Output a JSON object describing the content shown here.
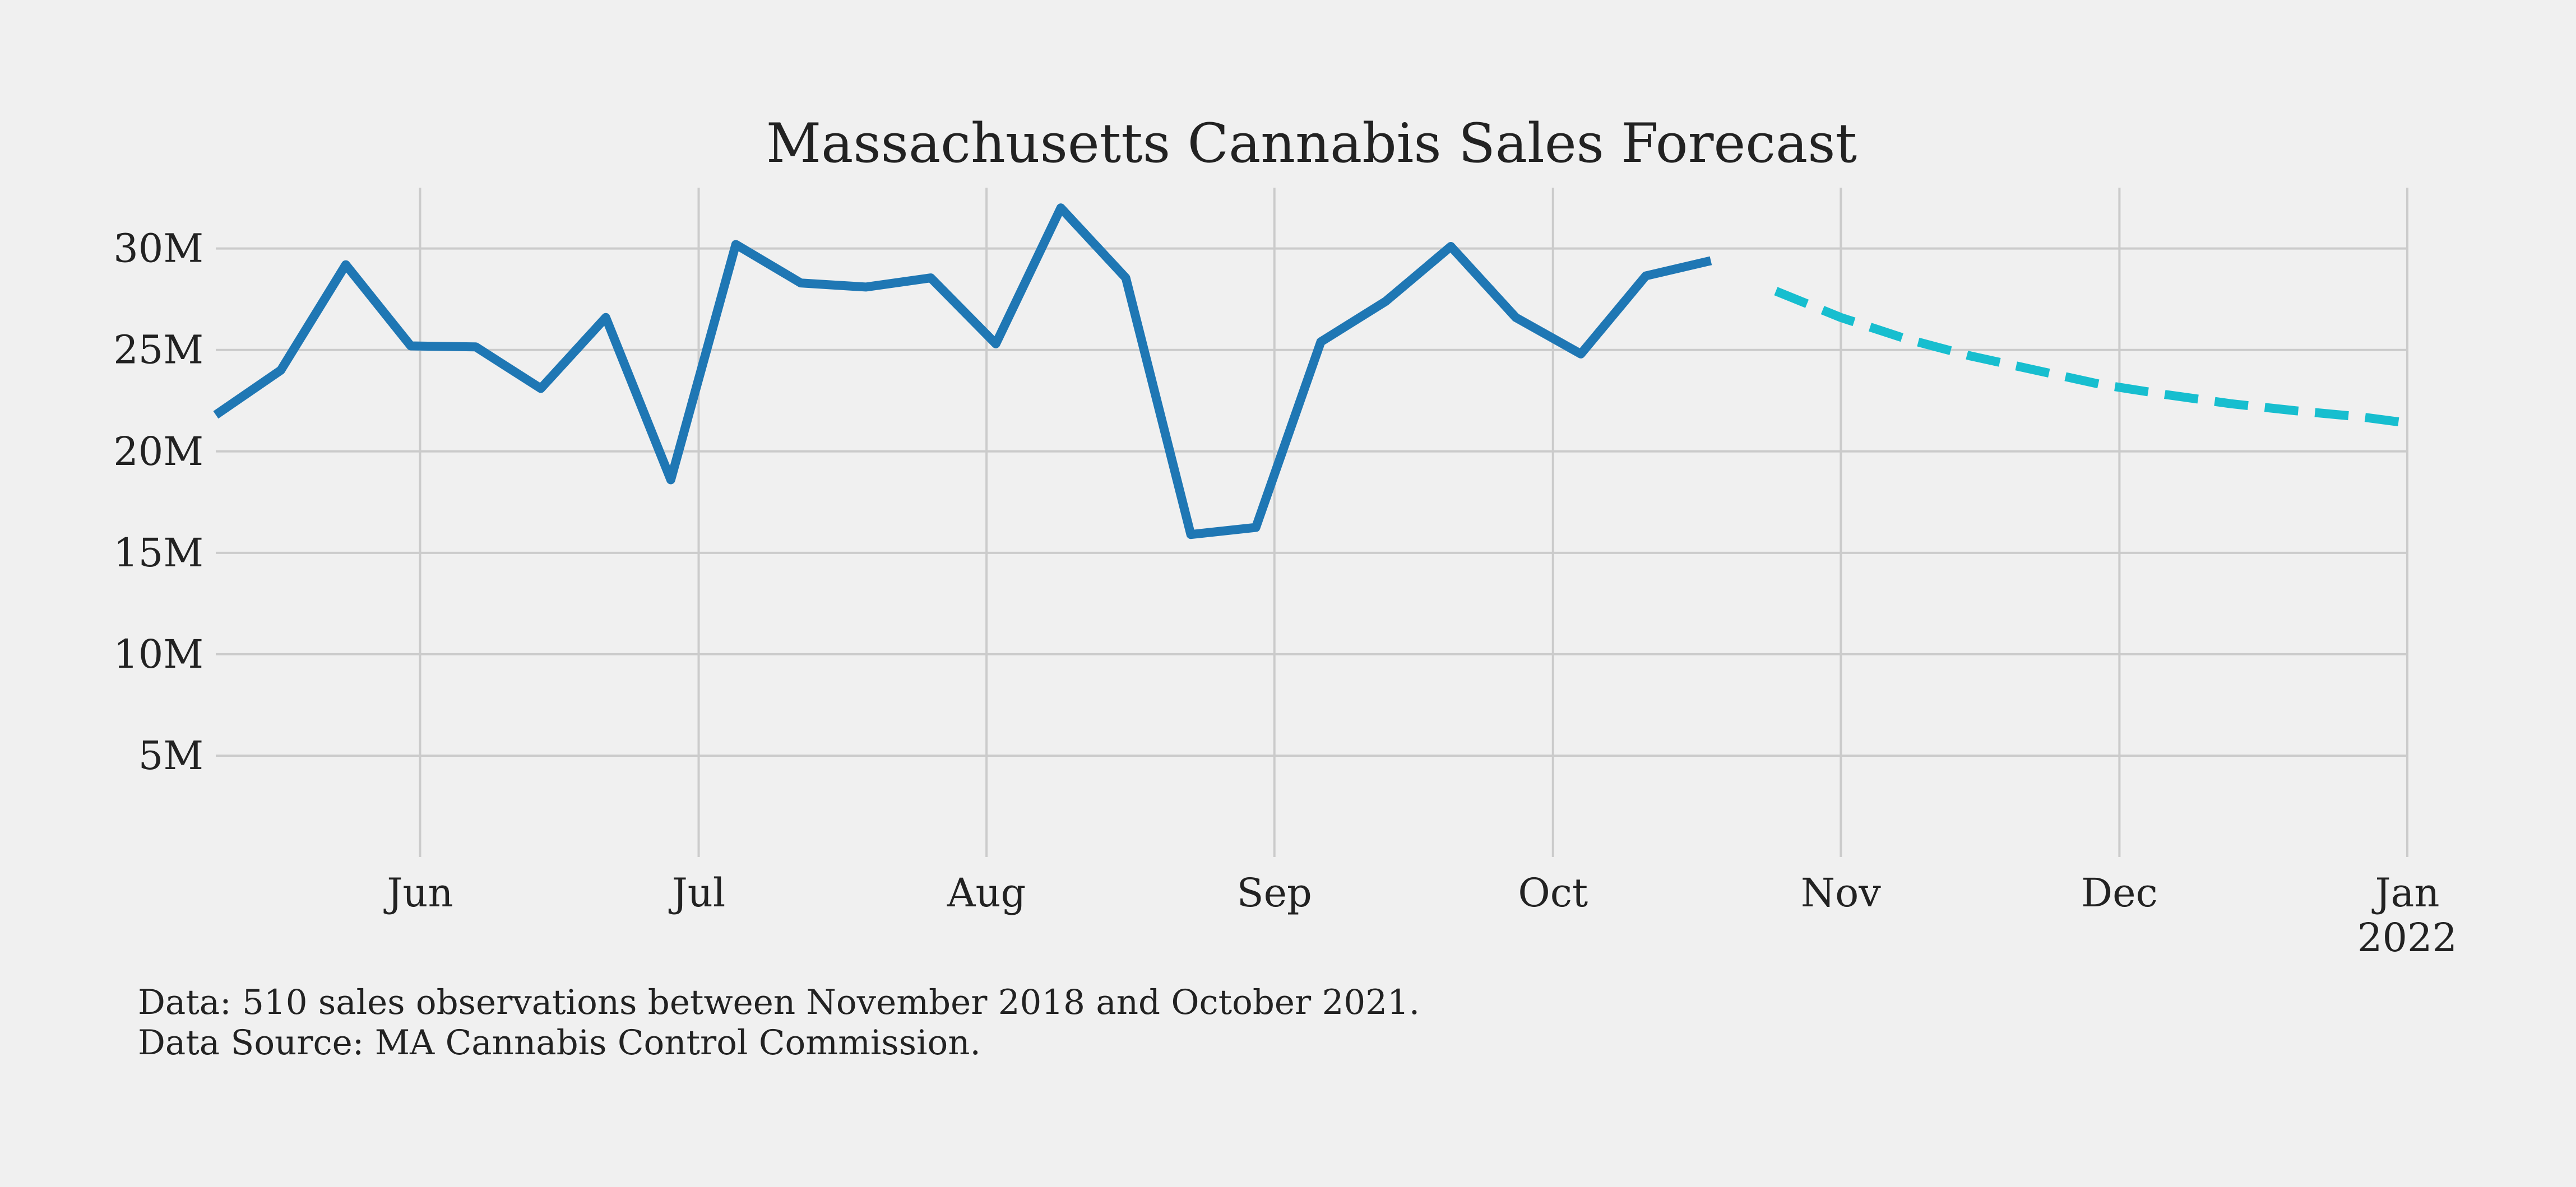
{
  "chart_data": {
    "type": "line",
    "title": "Massachusetts Cannabis Sales Forecast",
    "xlabel": "",
    "ylabel": "",
    "grid": true,
    "legend": "none",
    "ylim": [
      0,
      33000000
    ],
    "xlim": [
      "2021-05-10",
      "2022-01-01"
    ],
    "y_ticks": [
      {
        "value": 5000000,
        "label": "5M"
      },
      {
        "value": 10000000,
        "label": "10M"
      },
      {
        "value": 15000000,
        "label": "15M"
      },
      {
        "value": 20000000,
        "label": "20M"
      },
      {
        "value": 25000000,
        "label": "25M"
      },
      {
        "value": 30000000,
        "label": "30M"
      }
    ],
    "x_ticks": [
      {
        "date": "2021-06-01",
        "label": "Jun"
      },
      {
        "date": "2021-07-01",
        "label": "Jul"
      },
      {
        "date": "2021-08-01",
        "label": "Aug"
      },
      {
        "date": "2021-09-01",
        "label": "Sep"
      },
      {
        "date": "2021-10-01",
        "label": "Oct"
      },
      {
        "date": "2021-11-01",
        "label": "Nov"
      },
      {
        "date": "2021-12-01",
        "label": "Dec"
      },
      {
        "date": "2022-01-01",
        "label": "Jan",
        "sublabel": "2022"
      }
    ],
    "series": [
      {
        "color": "#1f77b4",
        "style": "solid",
        "points": [
          {
            "x": "2021-05-10",
            "y": 21800000
          },
          {
            "x": "2021-05-17",
            "y": 24000000
          },
          {
            "x": "2021-05-24",
            "y": 29200000
          },
          {
            "x": "2021-05-31",
            "y": 25200000
          },
          {
            "x": "2021-06-07",
            "y": 25150000
          },
          {
            "x": "2021-06-14",
            "y": 23100000
          },
          {
            "x": "2021-06-21",
            "y": 26600000
          },
          {
            "x": "2021-06-28",
            "y": 18600000
          },
          {
            "x": "2021-07-05",
            "y": 30200000
          },
          {
            "x": "2021-07-12",
            "y": 28300000
          },
          {
            "x": "2021-07-19",
            "y": 28100000
          },
          {
            "x": "2021-07-26",
            "y": 28550000
          },
          {
            "x": "2021-08-02",
            "y": 25300000
          },
          {
            "x": "2021-08-09",
            "y": 32000000
          },
          {
            "x": "2021-08-16",
            "y": 28550000
          },
          {
            "x": "2021-08-23",
            "y": 15900000
          },
          {
            "x": "2021-08-30",
            "y": 16250000
          },
          {
            "x": "2021-09-06",
            "y": 25400000
          },
          {
            "x": "2021-09-13",
            "y": 27400000
          },
          {
            "x": "2021-09-20",
            "y": 30100000
          },
          {
            "x": "2021-09-27",
            "y": 26600000
          },
          {
            "x": "2021-10-04",
            "y": 24800000
          },
          {
            "x": "2021-10-11",
            "y": 28650000
          },
          {
            "x": "2021-10-18",
            "y": 29400000
          }
        ]
      },
      {
        "color": "#17becf",
        "style": "dashed",
        "points": [
          {
            "x": "2021-10-25",
            "y": 27900000
          },
          {
            "x": "2021-11-01",
            "y": 26600000
          },
          {
            "x": "2021-11-08",
            "y": 25550000
          },
          {
            "x": "2021-11-15",
            "y": 24700000
          },
          {
            "x": "2021-11-22",
            "y": 24000000
          },
          {
            "x": "2021-11-29",
            "y": 23300000
          },
          {
            "x": "2021-12-06",
            "y": 22800000
          },
          {
            "x": "2021-12-13",
            "y": 22350000
          },
          {
            "x": "2021-12-20",
            "y": 22000000
          },
          {
            "x": "2021-12-27",
            "y": 21700000
          },
          {
            "x": "2022-01-01",
            "y": 21400000
          }
        ]
      }
    ]
  },
  "footnotes": {
    "line1": "Data: 510 sales observations between November 2018 and October 2021.",
    "line2": "Data Source: MA Cannabis Control Commission."
  }
}
